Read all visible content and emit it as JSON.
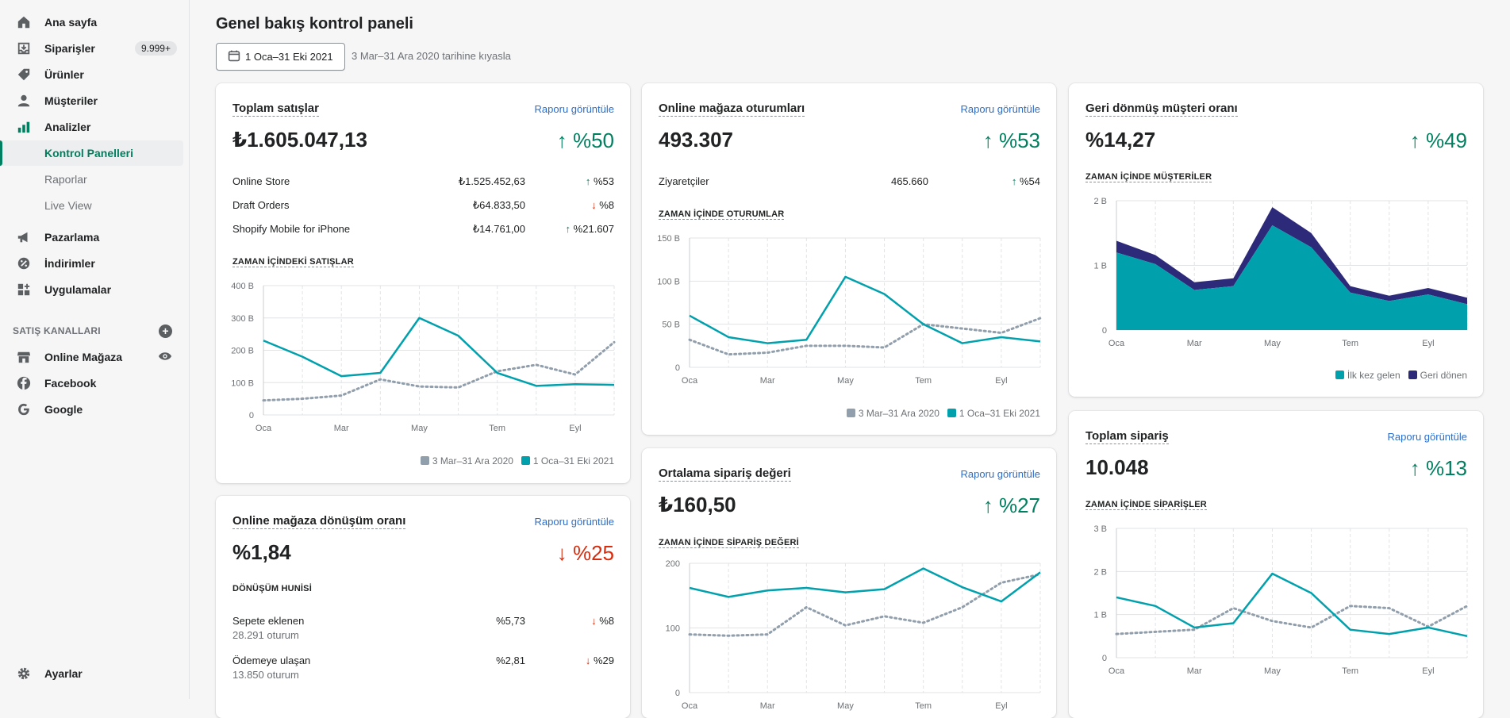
{
  "sidebar": {
    "items": [
      {
        "label": "Ana sayfa",
        "icon": "home-icon"
      },
      {
        "label": "Siparişler",
        "icon": "orders-icon",
        "badge": "9.999+"
      },
      {
        "label": "Ürünler",
        "icon": "tag-icon"
      },
      {
        "label": "Müşteriler",
        "icon": "person-icon"
      },
      {
        "label": "Analizler",
        "icon": "analytics-icon"
      }
    ],
    "sub_items": [
      "Kontrol Panelleri",
      "Raporlar",
      "Live View"
    ],
    "items2": [
      {
        "label": "Pazarlama",
        "icon": "megaphone-icon"
      },
      {
        "label": "İndirimler",
        "icon": "discount-icon"
      },
      {
        "label": "Uygulamalar",
        "icon": "apps-icon"
      }
    ],
    "channels_label": "SATIŞ KANALLARI",
    "channels": [
      {
        "label": "Online Mağaza",
        "icon": "store-icon"
      },
      {
        "label": "Facebook",
        "icon": "facebook-icon"
      },
      {
        "label": "Google",
        "icon": "google-icon"
      }
    ],
    "settings": "Ayarlar"
  },
  "header": {
    "title": "Genel bakış kontrol paneli",
    "date_range": "1 Oca–31 Eki 2021",
    "compare": "3 Mar–31 Ara 2020 tarihine kıyasla"
  },
  "colors": {
    "accent": "#00a0ac",
    "compare": "#919eab",
    "returning": "#2e2a7a",
    "up": "#007f5f",
    "down": "#d72c0d",
    "link": "#2c6ecb"
  },
  "legend": {
    "prev": "3 Mar–31 Ara 2020",
    "curr": "1 Oca–31 Eki 2021",
    "first_time": "İlk kez gelen",
    "returning": "Geri dönen"
  },
  "months": [
    "Oca",
    "Mar",
    "May",
    "Tem",
    "Eyl"
  ],
  "total_sales": {
    "title": "Toplam satışlar",
    "link": "Raporu görüntüle",
    "value": "₺1.605.047,13",
    "delta": "↑ %50",
    "rows": [
      {
        "name": "Online Store",
        "value": "₺1.525.452,63",
        "arrow": "↑",
        "delta": "%53",
        "dir": "up"
      },
      {
        "name": "Draft Orders",
        "value": "₺64.833,50",
        "arrow": "↓",
        "delta": "%8",
        "dir": "down"
      },
      {
        "name": "Shopify Mobile for iPhone",
        "value": "₺14.761,00",
        "arrow": "↑",
        "delta": "%21.607",
        "dir": "up"
      }
    ],
    "chart_label": "ZAMAN İÇİNDEKİ SATIŞLAR"
  },
  "sessions": {
    "title": "Online mağaza oturumları",
    "link": "Raporu görüntüle",
    "value": "493.307",
    "delta": "↑ %53",
    "row": {
      "name": "Ziyaretçiler",
      "value": "465.660",
      "arrow": "↑",
      "delta": "%54"
    },
    "chart_label": "ZAMAN İÇİNDE OTURUMLAR"
  },
  "returning": {
    "title": "Geri dönmüş müşteri oranı",
    "value": "%14,27",
    "delta": "↑ %49",
    "chart_label": "ZAMAN İÇİNDE MÜŞTERİLER"
  },
  "conversion": {
    "title": "Online mağaza dönüşüm oranı",
    "link": "Raporu görüntüle",
    "value": "%1,84",
    "delta": "↓ %25",
    "funnel_label": "DÖNÜŞÜM HUNİSİ",
    "rows": [
      {
        "name": "Sepete eklenen",
        "sub": "28.291 oturum",
        "value": "%5,73",
        "arrow": "↓",
        "delta": "%8"
      },
      {
        "name": "Ödemeye ulaşan",
        "sub": "13.850 oturum",
        "value": "%2,81",
        "arrow": "↓",
        "delta": "%29"
      }
    ]
  },
  "aov": {
    "title": "Ortalama sipariş değeri",
    "link": "Raporu görüntüle",
    "value": "₺160,50",
    "delta": "↑ %27",
    "chart_label": "ZAMAN İÇİNDE SİPARİŞ DEĞERİ"
  },
  "orders": {
    "title": "Toplam sipariş",
    "link": "Raporu görüntüle",
    "value": "10.048",
    "delta": "↑ %13",
    "chart_label": "ZAMAN İÇİNDE SİPARİŞLER"
  },
  "chart_data": [
    {
      "type": "line",
      "id": "sales",
      "x": [
        "Oca",
        "",
        "Mar",
        "",
        "May",
        "",
        "Tem",
        "",
        "Eyl",
        ""
      ],
      "yticks": [
        "0",
        "100 B",
        "200 B",
        "300 B",
        "400 B"
      ],
      "ylim": [
        0,
        400
      ],
      "series": [
        {
          "name": "1 Oca–31 Eki 2021",
          "values": [
            230,
            180,
            120,
            130,
            300,
            245,
            130,
            90,
            95,
            93
          ]
        },
        {
          "name": "3 Mar–31 Ara 2020",
          "values": [
            45,
            50,
            60,
            110,
            88,
            85,
            135,
            155,
            125,
            225
          ]
        }
      ]
    },
    {
      "type": "line",
      "id": "sessions",
      "x": [
        "Oca",
        "",
        "Mar",
        "",
        "May",
        "",
        "Tem",
        "",
        "Eyl",
        ""
      ],
      "yticks": [
        "0",
        "50 B",
        "100 B",
        "150 B"
      ],
      "ylim": [
        0,
        150
      ],
      "series": [
        {
          "name": "1 Oca–31 Eki 2021",
          "values": [
            60,
            35,
            28,
            32,
            105,
            85,
            50,
            28,
            35,
            30
          ]
        },
        {
          "name": "3 Mar–31 Ara 2020",
          "values": [
            32,
            15,
            17,
            25,
            25,
            23,
            50,
            45,
            40,
            57
          ]
        }
      ]
    },
    {
      "type": "area",
      "id": "customers",
      "x": [
        "Oca",
        "",
        "Mar",
        "",
        "May",
        "",
        "Tem",
        "",
        "Eyl",
        ""
      ],
      "yticks": [
        "0",
        "1 B",
        "2 B"
      ],
      "ylim": [
        0,
        2
      ],
      "series": [
        {
          "name": "İlk kez gelen",
          "values": [
            1.2,
            1.02,
            0.62,
            0.68,
            1.62,
            1.28,
            0.58,
            0.45,
            0.55,
            0.4
          ]
        },
        {
          "name": "Geri dönen",
          "values": [
            0.18,
            0.14,
            0.12,
            0.12,
            0.28,
            0.22,
            0.1,
            0.08,
            0.1,
            0.1
          ]
        }
      ]
    },
    {
      "type": "line",
      "id": "aov",
      "x": [
        "Oca",
        "",
        "Mar",
        "",
        "May",
        "",
        "Tem",
        "",
        "Eyl",
        ""
      ],
      "yticks": [
        "0",
        "100",
        "200"
      ],
      "ylim": [
        0,
        200
      ],
      "series": [
        {
          "name": "1 Oca–31 Eki 2021",
          "values": [
            162,
            148,
            158,
            162,
            155,
            160,
            192,
            163,
            141,
            186
          ]
        },
        {
          "name": "3 Mar–31 Ara 2020",
          "values": [
            90,
            88,
            90,
            132,
            104,
            118,
            108,
            132,
            170,
            183
          ]
        }
      ]
    },
    {
      "type": "line",
      "id": "orders",
      "x": [
        "Oca",
        "",
        "Mar",
        "",
        "May",
        "",
        "Tem",
        "",
        "Eyl",
        ""
      ],
      "yticks": [
        "0",
        "1 B",
        "2 B",
        "3 B"
      ],
      "ylim": [
        0,
        3
      ],
      "series": [
        {
          "name": "1 Oca–31 Eki 2021",
          "values": [
            1.4,
            1.2,
            0.7,
            0.8,
            1.95,
            1.5,
            0.65,
            0.55,
            0.7,
            0.5
          ]
        },
        {
          "name": "3 Mar–31 Ara 2020",
          "values": [
            0.55,
            0.6,
            0.65,
            1.15,
            0.85,
            0.7,
            1.2,
            1.15,
            0.72,
            1.2
          ]
        }
      ]
    }
  ]
}
